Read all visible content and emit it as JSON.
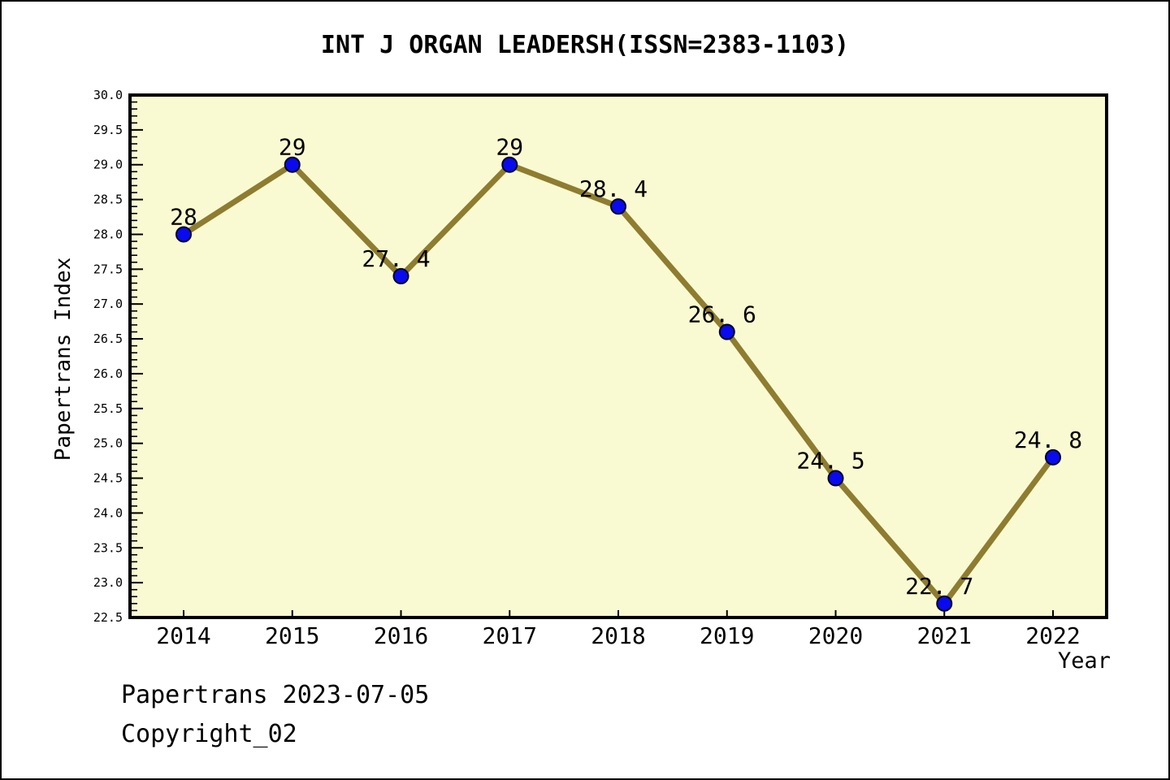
{
  "window": {
    "title": "INT J ORGAN LEADERSH(ISSN=2383-1103)"
  },
  "footer": {
    "line1": "Papertrans 2023-07-05",
    "line2": "Copyright_02"
  },
  "chart_data": {
    "type": "line",
    "title": "INT J ORGAN LEADERSH(ISSN=2383-1103)",
    "xlabel": "Year",
    "ylabel": "Papertrans Index",
    "categories": [
      "2014",
      "2015",
      "2016",
      "2017",
      "2018",
      "2019",
      "2020",
      "2021",
      "2022"
    ],
    "series": [
      {
        "name": "Papertrans Index",
        "values": [
          28,
          29,
          27.4,
          29,
          28.4,
          26.6,
          24.5,
          22.7,
          24.8
        ]
      }
    ],
    "point_labels": [
      "28",
      "29",
      "27. 4",
      "29",
      "28. 4",
      "26. 6",
      "24. 5",
      "22. 7",
      "24. 8"
    ],
    "ylim": [
      22.5,
      30.0
    ],
    "ytick_major": 0.5,
    "ytick_minor": 0.1,
    "grid": false,
    "legend": "none",
    "colors": {
      "plot_bg": "#FAFAD2",
      "line": "#8E7C30",
      "marker": "#0A0AEE",
      "marker_edge": "#000020",
      "axis": "#000000",
      "text": "#000000"
    }
  }
}
